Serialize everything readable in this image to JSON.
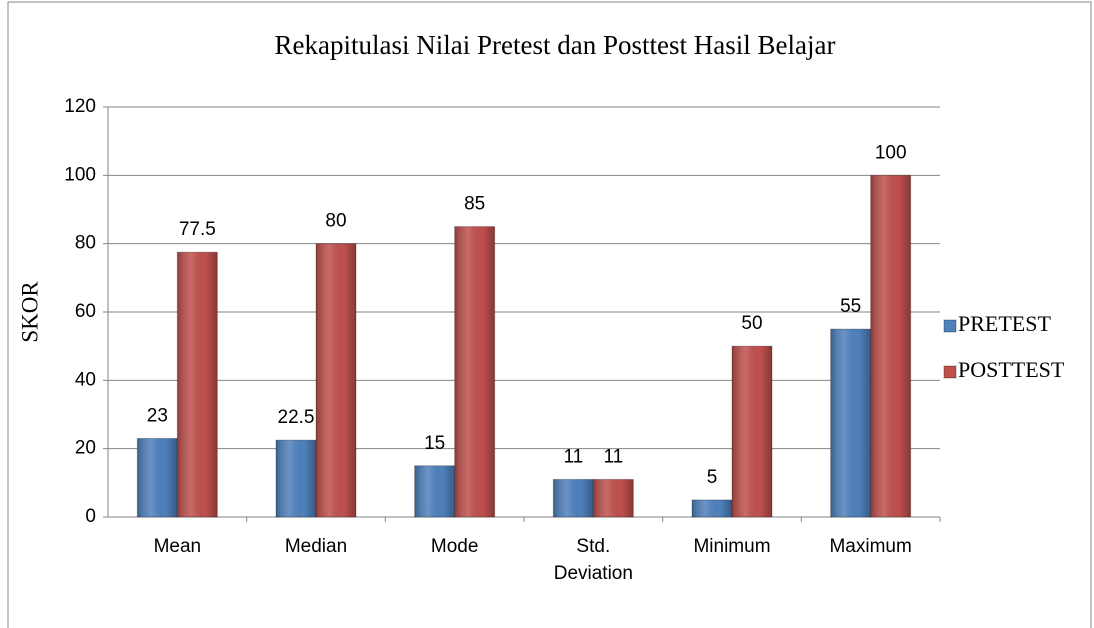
{
  "chart_data": {
    "type": "bar",
    "title": "Rekapitulasi Nilai Pretest dan Posttest Hasil Belajar",
    "y_label": "SKOR",
    "categories": [
      "Mean",
      "Median",
      "Mode",
      "Std. Deviation",
      "Minimum",
      "Maximum"
    ],
    "series": [
      {
        "name": "PRETEST",
        "color": "#4f81bd",
        "values": [
          23,
          22.5,
          15,
          11,
          5,
          55
        ]
      },
      {
        "name": "POSTTEST",
        "color": "#c0504d",
        "values": [
          77.5,
          80,
          85,
          11,
          50,
          100
        ]
      }
    ],
    "ylim": [
      0,
      120
    ],
    "yticks": [
      0,
      20,
      40,
      60,
      80,
      100,
      120
    ],
    "grid": true,
    "legend": "right"
  }
}
